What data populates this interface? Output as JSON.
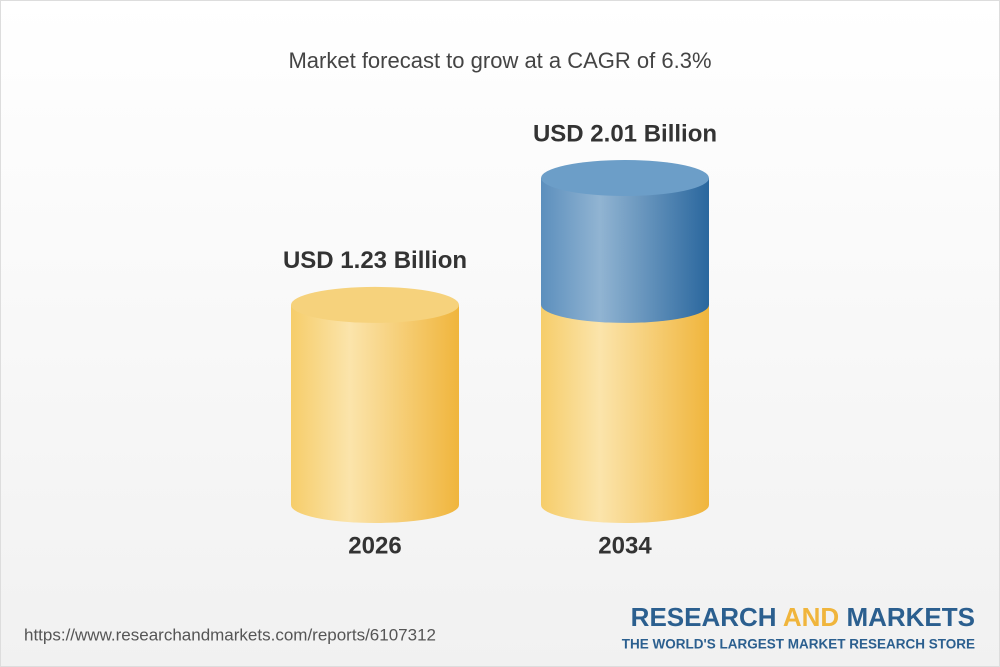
{
  "chart_data": {
    "type": "cylinder-bar",
    "title": "Market forecast to grow at a CAGR of 6.3%",
    "categories": [
      "2026",
      "2034"
    ],
    "values": [
      1.23,
      2.01
    ],
    "value_labels": [
      "USD 1.23 Billion",
      "USD 2.01 Billion"
    ],
    "colors": {
      "base": "#f2c14e",
      "growth": "#2f6da3"
    }
  },
  "footer": {
    "url": "https://www.researchandmarkets.com/reports/6107312",
    "brand": [
      "RESEARCH",
      "AND",
      "MARKETS"
    ],
    "tagline": "THE WORLD'S LARGEST MARKET RESEARCH STORE"
  }
}
